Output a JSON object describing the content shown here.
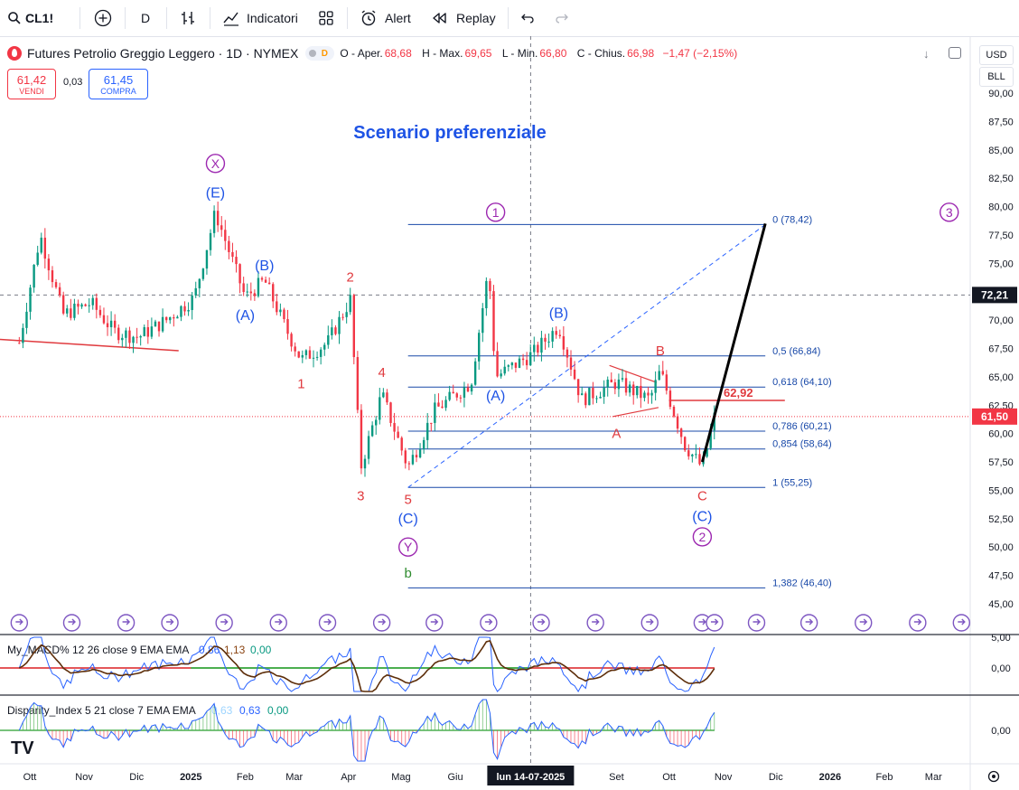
{
  "toolbar": {
    "symbol": "CL1!",
    "interval": "D",
    "indicators_label": "Indicatori",
    "alert_label": "Alert",
    "replay_label": "Replay"
  },
  "legend": {
    "title": "Futures Petrolio Greggio Leggero · 1D · NYMEX",
    "delay_badge": "D",
    "open_label": "O - Aper.",
    "open": "68,68",
    "high_label": "H - Max.",
    "high": "69,65",
    "low_label": "L - Min.",
    "low": "66,80",
    "close_label": "C - Chius.",
    "close": "66,98",
    "change": "−1,47 (−2,15%)"
  },
  "trade": {
    "sell_price": "61,42",
    "sell_label": "VENDI",
    "spread": "0,03",
    "buy_price": "61,45",
    "buy_label": "COMPRA"
  },
  "price_controls": {
    "currency": "USD",
    "unit": "BLL"
  },
  "colors": {
    "up": "#089981",
    "down": "#f23645",
    "blue": "#2962ff",
    "navy": "#1848a8",
    "wave_red": "#e03a3e",
    "wave_purple": "#9c27b0",
    "wave_blue": "#1e53e5",
    "wave_green": "#2e8b2e"
  },
  "chart_data": {
    "type": "candlestick",
    "title": "Scenario preferenziale",
    "x_labels": [
      "Ott",
      "Nov",
      "Dic",
      "2025",
      "Feb",
      "Mar",
      "Apr",
      "Mag",
      "Giu",
      "lun 14-07-2025",
      "Set",
      "Ott",
      "Nov",
      "Dic",
      "2026",
      "Feb",
      "Mar"
    ],
    "y_ticks": [
      "90,00",
      "87,50",
      "85,00",
      "82,50",
      "80,00",
      "77,50",
      "75,00",
      "72,50",
      "70,00",
      "67,50",
      "65,00",
      "62,50",
      "60,00",
      "57,50",
      "55,00",
      "52,50",
      "50,00",
      "47,50",
      "45,00"
    ],
    "ylim": [
      44.0,
      91.0
    ],
    "current_price": "61,50",
    "crosshair_price": "72,21",
    "price_points": [
      {
        "d": "2024-09-25",
        "v": 68.0
      },
      {
        "d": "2024-10-07",
        "v": 77.5
      },
      {
        "d": "2024-10-20",
        "v": 70.5
      },
      {
        "d": "2024-11-05",
        "v": 71.5
      },
      {
        "d": "2024-11-18",
        "v": 69.0
      },
      {
        "d": "2024-12-02",
        "v": 68.5
      },
      {
        "d": "2024-12-18",
        "v": 70.0
      },
      {
        "d": "2025-01-03",
        "v": 72.0
      },
      {
        "d": "2025-01-15",
        "v": 79.5
      },
      {
        "d": "2025-02-01",
        "v": 72.0
      },
      {
        "d": "2025-02-12",
        "v": 73.5
      },
      {
        "d": "2025-02-25",
        "v": 69.0
      },
      {
        "d": "2025-03-05",
        "v": 66.5
      },
      {
        "d": "2025-03-20",
        "v": 68.0
      },
      {
        "d": "2025-04-02",
        "v": 71.8
      },
      {
        "d": "2025-04-08",
        "v": 57.0
      },
      {
        "d": "2025-04-20",
        "v": 63.5
      },
      {
        "d": "2025-05-05",
        "v": 57.0
      },
      {
        "d": "2025-05-20",
        "v": 62.0
      },
      {
        "d": "2025-06-10",
        "v": 64.5
      },
      {
        "d": "2025-06-20",
        "v": 74.5
      },
      {
        "d": "2025-06-24",
        "v": 65.0
      },
      {
        "d": "2025-07-15",
        "v": 67.0
      },
      {
        "d": "2025-07-30",
        "v": 69.5
      },
      {
        "d": "2025-08-12",
        "v": 63.0
      },
      {
        "d": "2025-09-01",
        "v": 64.5
      },
      {
        "d": "2025-09-20",
        "v": 63.0
      },
      {
        "d": "2025-09-26",
        "v": 65.5
      },
      {
        "d": "2025-10-10",
        "v": 59.0
      },
      {
        "d": "2025-10-20",
        "v": 57.0
      },
      {
        "d": "2025-10-27",
        "v": 61.5
      }
    ],
    "fibonacci": [
      {
        "label": "0 (78,42)",
        "value": 78.42
      },
      {
        "label": "0,5 (66,84)",
        "value": 66.84
      },
      {
        "label": "0,618 (64,10)",
        "value": 64.1
      },
      {
        "label": "0,786 (60,21)",
        "value": 60.21
      },
      {
        "label": "0,854 (58,64)",
        "value": 58.64
      },
      {
        "label": "1 (55,25)",
        "value": 55.25
      },
      {
        "label": "1,382 (46,40)",
        "value": 46.4
      }
    ],
    "resistance": {
      "label": "62,92",
      "value": 62.92
    },
    "wave_labels": [
      {
        "text": "X",
        "circled": true,
        "color": "wave_purple",
        "d": "2025-01-15",
        "v": 83.8
      },
      {
        "text": "(E)",
        "color": "wave_blue",
        "d": "2025-01-15",
        "v": 81.2
      },
      {
        "text": "(B)",
        "color": "wave_blue",
        "d": "2025-02-12",
        "v": 74.8
      },
      {
        "text": "(A)",
        "color": "wave_blue",
        "d": "2025-02-01",
        "v": 70.4
      },
      {
        "text": "2",
        "color": "wave_red",
        "d": "2025-04-02",
        "v": 73.8
      },
      {
        "text": "1",
        "color": "wave_red",
        "d": "2025-03-05",
        "v": 64.4
      },
      {
        "text": "4",
        "color": "wave_red",
        "d": "2025-04-20",
        "v": 65.4
      },
      {
        "text": "3",
        "color": "wave_red",
        "d": "2025-04-08",
        "v": 54.5
      },
      {
        "text": "5",
        "color": "wave_red",
        "d": "2025-05-05",
        "v": 54.2
      },
      {
        "text": "(C)",
        "color": "wave_blue",
        "d": "2025-05-05",
        "v": 52.5
      },
      {
        "text": "Y",
        "circled": true,
        "color": "wave_purple",
        "d": "2025-05-05",
        "v": 50.0
      },
      {
        "text": "b",
        "color": "wave_green",
        "d": "2025-05-05",
        "v": 47.7
      },
      {
        "text": "1",
        "circled": true,
        "color": "wave_purple",
        "d": "2025-06-24",
        "v": 79.5
      },
      {
        "text": "(A)",
        "color": "wave_blue",
        "d": "2025-06-24",
        "v": 63.3
      },
      {
        "text": "(B)",
        "color": "wave_blue",
        "d": "2025-07-30",
        "v": 70.6
      },
      {
        "text": "B",
        "color": "wave_red",
        "d": "2025-09-26",
        "v": 67.3
      },
      {
        "text": "A",
        "color": "wave_red",
        "d": "2025-09-01",
        "v": 60.0
      },
      {
        "text": "C",
        "color": "wave_red",
        "d": "2025-10-20",
        "v": 54.5
      },
      {
        "text": "(C)",
        "color": "wave_blue",
        "d": "2025-10-20",
        "v": 52.7
      },
      {
        "text": "2",
        "circled": true,
        "color": "wave_purple",
        "d": "2025-10-20",
        "v": 50.9
      },
      {
        "text": "3",
        "circled": true,
        "color": "wave_purple",
        "d": "2026-03-10",
        "v": 79.5
      }
    ],
    "projection": [
      {
        "d": "2025-10-20",
        "v": 57.5
      },
      {
        "d": "2025-11-25",
        "v": 78.5
      }
    ],
    "macd": {
      "name": "My_MACD% 12 26 close 9 EMA EMA",
      "v1": "0,86",
      "v2": "1,13",
      "v3": "0,00",
      "ticks": [
        "5,00",
        "0,00"
      ]
    },
    "disparity": {
      "name": "Disparity_Index 5 21 close 7 EMA EMA",
      "v1": "0,63",
      "v2": "0,63",
      "v3": "0,00",
      "ticks": [
        "0,00"
      ]
    }
  }
}
